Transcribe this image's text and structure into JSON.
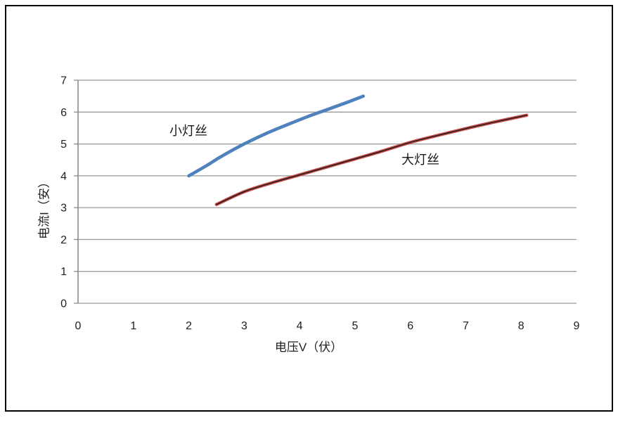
{
  "page": {
    "background": "#ffffff",
    "border_color": "#000000"
  },
  "chart_data": {
    "type": "line",
    "title": "",
    "xlabel": "电压V（伏）",
    "ylabel": "电流I（安）",
    "xlim": [
      0,
      9
    ],
    "ylim": [
      0,
      7
    ],
    "xticks": [
      0,
      1,
      2,
      3,
      4,
      5,
      6,
      7,
      8,
      9
    ],
    "yticks": [
      0,
      1,
      2,
      3,
      4,
      5,
      6,
      7
    ],
    "grid": "horizontal-only",
    "x_axis_ticks": "none",
    "y_axis_ticks": "outside",
    "legend": "inline-labels",
    "grid_color": "#9A9A9A",
    "axis_color": "#8C8C8C",
    "text_color": "#1F1F1F",
    "series": [
      {
        "id": "small-filament",
        "name": "小灯丝",
        "color": "#4F81BD",
        "style": "solid-thick",
        "label_anchor": {
          "x": 1.66,
          "y": 5.48
        },
        "points": [
          [
            2.0,
            4.0
          ],
          [
            2.3,
            4.3
          ],
          [
            2.6,
            4.62
          ],
          [
            3.0,
            5.0
          ],
          [
            3.4,
            5.33
          ],
          [
            3.8,
            5.62
          ],
          [
            4.15,
            5.86
          ],
          [
            4.5,
            6.08
          ],
          [
            4.85,
            6.3
          ],
          [
            5.15,
            6.5
          ]
        ]
      },
      {
        "id": "large-filament",
        "name": "大灯丝",
        "color": "#C0504D",
        "core_color": "#2B1717",
        "style": "thick-with-dark-core",
        "label_anchor": {
          "x": 5.85,
          "y": 4.57
        },
        "points": [
          [
            2.5,
            3.1
          ],
          [
            3.0,
            3.5
          ],
          [
            3.5,
            3.78
          ],
          [
            4.0,
            4.03
          ],
          [
            4.5,
            4.28
          ],
          [
            5.0,
            4.53
          ],
          [
            5.5,
            4.78
          ],
          [
            6.0,
            5.05
          ],
          [
            6.5,
            5.27
          ],
          [
            7.0,
            5.48
          ],
          [
            7.5,
            5.68
          ],
          [
            8.1,
            5.9
          ]
        ]
      }
    ]
  }
}
